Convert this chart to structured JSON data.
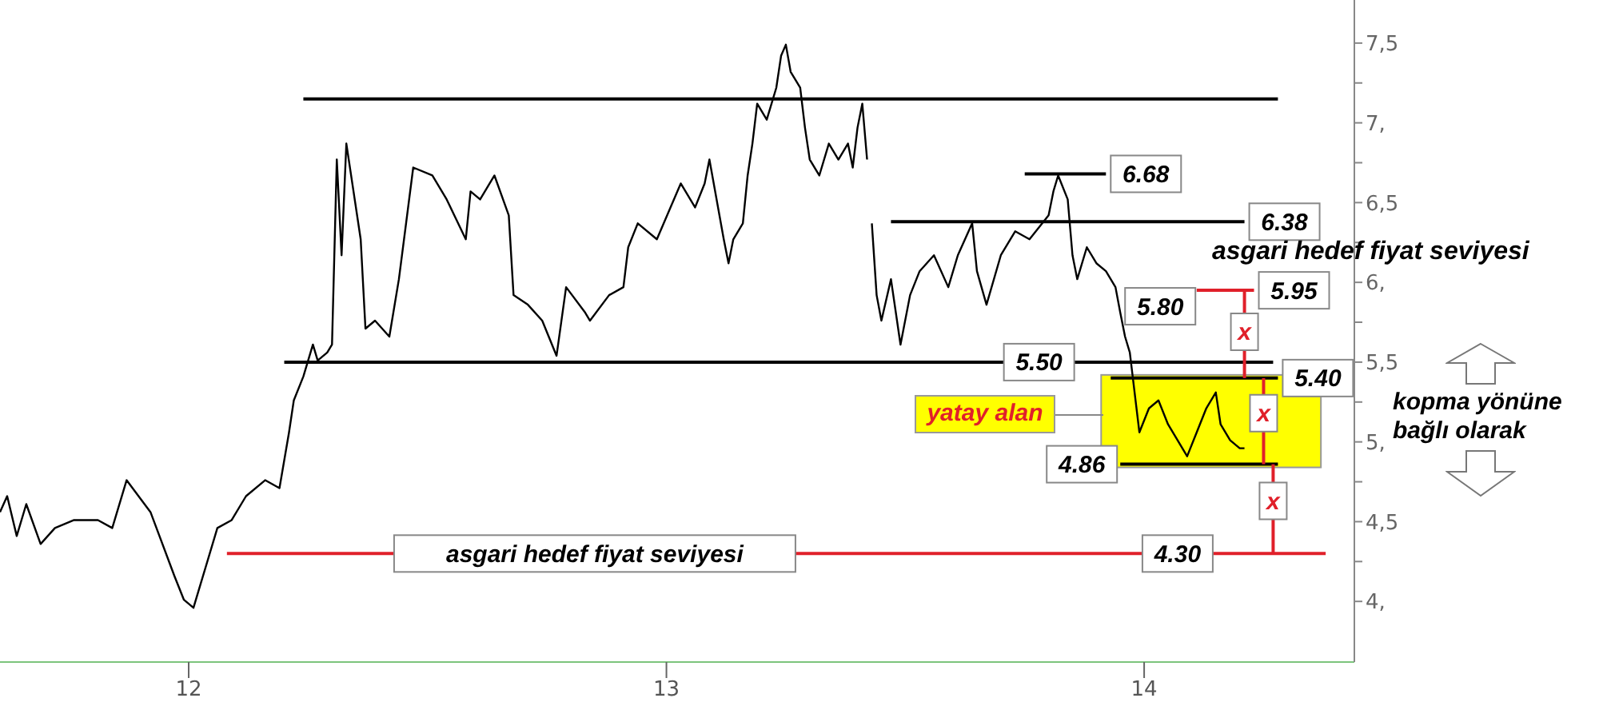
{
  "chart_data": {
    "type": "line",
    "xlim": [
      11.605,
      14.44
    ],
    "xticks": [
      12,
      13,
      14
    ],
    "ylim": [
      3.62,
      7.77
    ],
    "yticks": [
      {
        "value": 4,
        "label": "4,"
      },
      {
        "value": 4.25,
        "label": null
      },
      {
        "value": 4.5,
        "label": "4,5"
      },
      {
        "value": 4.75,
        "label": null
      },
      {
        "value": 5,
        "label": "5,"
      },
      {
        "value": 5.25,
        "label": null
      },
      {
        "value": 5.5,
        "label": "5,5"
      },
      {
        "value": 5.75,
        "label": null
      },
      {
        "value": 6,
        "label": "6,"
      },
      {
        "value": 6.25,
        "label": null
      },
      {
        "value": 6.5,
        "label": "6,5"
      },
      {
        "value": 6.75,
        "label": null
      },
      {
        "value": 7,
        "label": "7,"
      },
      {
        "value": 7.25,
        "label": null
      },
      {
        "value": 7.5,
        "label": "7,5"
      }
    ],
    "grid": false,
    "marker": "none",
    "series": [
      {
        "color": "#000000",
        "x": [
          11.605,
          11.62,
          11.64,
          11.66,
          11.69,
          11.72,
          11.76,
          11.81,
          11.84,
          11.87,
          11.92,
          11.97,
          11.99,
          12.01,
          12.02,
          12.06,
          12.09,
          12.12,
          12.16,
          12.19,
          12.21,
          12.22,
          12.24,
          12.26,
          12.27,
          12.29,
          12.3,
          12.31,
          12.32,
          12.33,
          12.36,
          12.37,
          12.39,
          12.42,
          12.44,
          12.47,
          12.51,
          12.54,
          12.58,
          12.59,
          12.61,
          12.64,
          12.67,
          12.68,
          12.71,
          12.74,
          12.77,
          12.79,
          12.83,
          12.84,
          12.88,
          12.91,
          12.92,
          12.94,
          12.98,
          13.03,
          13.06,
          13.08,
          13.09,
          13.12,
          13.13,
          13.14,
          13.16,
          13.17,
          13.18,
          13.19,
          13.21,
          13.23,
          13.24,
          13.25,
          13.26,
          13.28,
          13.29,
          13.3,
          13.32,
          13.34,
          13.36,
          13.38,
          13.39,
          13.4,
          13.41,
          13.42,
          13.425,
          13.43,
          13.44,
          13.45,
          13.47,
          13.49,
          13.51,
          13.53,
          13.56,
          13.59,
          13.61,
          13.64,
          13.65,
          13.67,
          13.7,
          13.73,
          13.76,
          13.8,
          13.81,
          13.82,
          13.84,
          13.85,
          13.86,
          13.88,
          13.9,
          13.92,
          13.94,
          13.95,
          13.96,
          13.97,
          13.99,
          14.01,
          14.03,
          14.05,
          14.07,
          14.09,
          14.11,
          14.13,
          14.15,
          14.16,
          14.18,
          14.2,
          14.21
        ],
        "values": [
          4.56,
          4.66,
          4.41,
          4.61,
          4.36,
          4.46,
          4.51,
          4.51,
          4.46,
          4.76,
          4.56,
          4.16,
          4.01,
          3.96,
          4.06,
          4.46,
          4.51,
          4.66,
          4.76,
          4.71,
          5.06,
          5.26,
          5.41,
          5.61,
          5.51,
          5.56,
          5.61,
          6.77,
          6.17,
          6.87,
          6.27,
          5.71,
          5.76,
          5.66,
          6.02,
          6.72,
          6.67,
          6.52,
          6.27,
          6.57,
          6.52,
          6.67,
          6.42,
          5.92,
          5.86,
          5.76,
          5.54,
          5.97,
          5.81,
          5.76,
          5.92,
          5.97,
          6.22,
          6.37,
          6.27,
          6.62,
          6.47,
          6.62,
          6.77,
          6.27,
          6.12,
          6.27,
          6.37,
          6.67,
          6.87,
          7.12,
          7.02,
          7.22,
          7.42,
          7.49,
          7.32,
          7.22,
          6.97,
          6.77,
          6.67,
          6.87,
          6.77,
          6.87,
          6.72,
          6.97,
          7.12,
          6.77,
          null,
          6.37,
          5.92,
          5.76,
          6.02,
          5.61,
          5.92,
          6.07,
          6.17,
          5.97,
          6.17,
          6.37,
          6.07,
          5.86,
          6.17,
          6.32,
          6.27,
          6.42,
          6.57,
          6.67,
          6.52,
          6.17,
          6.02,
          6.22,
          6.12,
          6.07,
          5.97,
          5.81,
          5.66,
          5.56,
          5.06,
          5.21,
          5.26,
          5.11,
          5.01,
          4.91,
          5.06,
          5.21,
          5.31,
          5.11,
          5.01,
          4.96,
          4.96
        ]
      },
      {
        "color": "#000000",
        "x": [
          12.24,
          14.28
        ],
        "values": [
          7.15,
          7.15
        ]
      },
      {
        "color": "#000000",
        "x": [
          12.2,
          14.27
        ],
        "values": [
          5.5,
          5.5
        ]
      },
      {
        "color": "#000000",
        "x": [
          13.75,
          13.92
        ],
        "values": [
          6.68,
          6.68
        ]
      },
      {
        "color": "#000000",
        "x": [
          13.47,
          14.21
        ],
        "values": [
          6.38,
          6.38
        ]
      },
      {
        "color": "#000000",
        "x": [
          13.93,
          14.28
        ],
        "values": [
          5.4,
          5.4
        ]
      },
      {
        "color": "#000000",
        "x": [
          13.95,
          14.28
        ],
        "values": [
          4.86,
          4.86
        ]
      },
      {
        "color": "#e0202a",
        "x": [
          12.08,
          14.38
        ],
        "values": [
          4.3,
          4.3
        ]
      },
      {
        "color": "#e0202a",
        "x": [
          14.11,
          14.23
        ],
        "values": [
          5.95,
          5.95
        ]
      },
      {
        "color": "#e0202a",
        "x": [
          14.21,
          14.21
        ],
        "values": [
          5.95,
          5.4
        ]
      },
      {
        "color": "#e0202a",
        "x": [
          14.25,
          14.25
        ],
        "values": [
          5.4,
          4.86
        ]
      },
      {
        "color": "#e0202a",
        "x": [
          14.27,
          14.27
        ],
        "values": [
          4.86,
          4.3
        ]
      }
    ],
    "annotations": [
      {
        "text": "6.68",
        "x": 13.92,
        "y": 6.68
      },
      {
        "text": "6.38",
        "x": 14.21,
        "y": 6.38
      },
      {
        "text": "5.80",
        "x": 13.95,
        "y": 5.81
      },
      {
        "text": "5.95",
        "x": 14.23,
        "y": 5.95
      },
      {
        "text": "5.50",
        "x": 13.78,
        "y": 5.5
      },
      {
        "text": "5.40",
        "x": 14.28,
        "y": 5.4
      },
      {
        "text": "4.86",
        "x": 13.95,
        "y": 4.86
      },
      {
        "text": "4.30",
        "x": 14.07,
        "y": 4.3
      },
      "yatay alan",
      {
        "text": "asgari hedef fiyat seviyesi",
        "x": 12.85,
        "y": 4.3
      },
      "asgari hedef fiyat seviyesi",
      {
        "text": "x",
        "x": 14.21,
        "y": 5.69
      },
      {
        "text": "x",
        "x": 14.25,
        "y": 5.18
      },
      {
        "text": "x",
        "x": 14.27,
        "y": 4.63
      },
      "kopma yönüne bağlı olarak"
    ]
  }
}
